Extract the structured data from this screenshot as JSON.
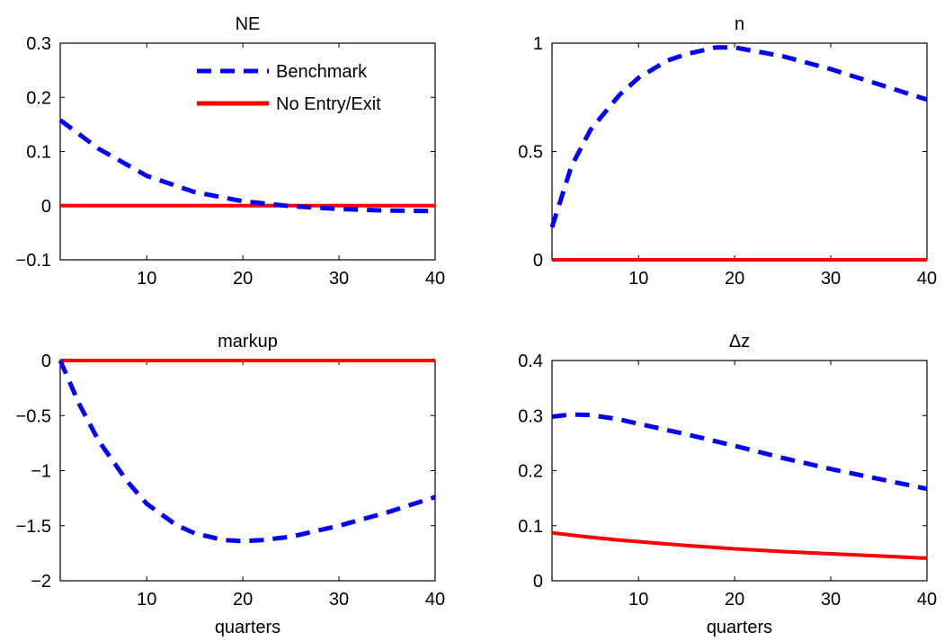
{
  "chart_data": [
    {
      "type": "line",
      "title": "NE",
      "xlabel": "",
      "ylabel": "",
      "xlim": [
        1,
        40
      ],
      "ylim": [
        -0.1,
        0.3
      ],
      "xticks": [
        10,
        20,
        30,
        40
      ],
      "yticks": [
        -0.1,
        0,
        0.1,
        0.2,
        0.3
      ],
      "x": [
        1,
        5,
        10,
        15,
        20,
        25,
        30,
        35,
        40
      ],
      "series": [
        {
          "name": "Benchmark",
          "color": "#0000ff",
          "style": "dashed",
          "values": [
            0.158,
            0.105,
            0.055,
            0.025,
            0.008,
            -0.001,
            -0.006,
            -0.009,
            -0.01
          ]
        },
        {
          "name": "No Entry/Exit",
          "color": "#ff0000",
          "style": "solid",
          "values": [
            0,
            0,
            0,
            0,
            0,
            0,
            0,
            0,
            0
          ]
        }
      ],
      "legend": {
        "position": "top-right"
      }
    },
    {
      "type": "line",
      "title": "n",
      "xlabel": "",
      "ylabel": "",
      "xlim": [
        1,
        40
      ],
      "ylim": [
        0,
        1
      ],
      "xticks": [
        10,
        20,
        30,
        40
      ],
      "yticks": [
        0,
        0.5,
        1
      ],
      "x": [
        1,
        3,
        5,
        8,
        10,
        13,
        15,
        18,
        20,
        25,
        30,
        35,
        40
      ],
      "series": [
        {
          "color": "#0000ff",
          "style": "dashed",
          "values": [
            0.15,
            0.43,
            0.6,
            0.76,
            0.84,
            0.92,
            0.95,
            0.98,
            0.98,
            0.94,
            0.88,
            0.81,
            0.74
          ]
        },
        {
          "color": "#ff0000",
          "style": "solid",
          "values": [
            0,
            0,
            0,
            0,
            0,
            0,
            0,
            0,
            0,
            0,
            0,
            0,
            0
          ]
        }
      ]
    },
    {
      "type": "line",
      "title": "markup",
      "xlabel": "quarters",
      "ylabel": "",
      "xlim": [
        1,
        40
      ],
      "ylim": [
        -2,
        0
      ],
      "xticks": [
        10,
        20,
        30,
        40
      ],
      "yticks": [
        -2,
        -1.5,
        -1,
        -0.5,
        0
      ],
      "x": [
        1,
        3,
        5,
        8,
        10,
        13,
        15,
        18,
        20,
        22,
        25,
        30,
        35,
        40
      ],
      "series": [
        {
          "color": "#0000ff",
          "style": "dashed",
          "values": [
            0,
            -0.4,
            -0.73,
            -1.1,
            -1.3,
            -1.49,
            -1.57,
            -1.63,
            -1.64,
            -1.63,
            -1.6,
            -1.5,
            -1.38,
            -1.24
          ]
        },
        {
          "color": "#ff0000",
          "style": "solid",
          "values": [
            0,
            0,
            0,
            0,
            0,
            0,
            0,
            0,
            0,
            0,
            0,
            0,
            0,
            0
          ]
        }
      ]
    },
    {
      "type": "line",
      "title": "Δz",
      "xlabel": "quarters",
      "ylabel": "",
      "xlim": [
        1,
        40
      ],
      "ylim": [
        0,
        0.4
      ],
      "xticks": [
        10,
        20,
        30,
        40
      ],
      "yticks": [
        0,
        0.1,
        0.2,
        0.3,
        0.4
      ],
      "x": [
        1,
        3,
        5,
        8,
        10,
        15,
        20,
        25,
        30,
        35,
        40
      ],
      "series": [
        {
          "color": "#0000ff",
          "style": "dashed",
          "values": [
            0.298,
            0.302,
            0.301,
            0.293,
            0.285,
            0.266,
            0.245,
            0.223,
            0.203,
            0.185,
            0.167
          ]
        },
        {
          "color": "#ff0000",
          "style": "solid",
          "values": [
            0.087,
            0.083,
            0.079,
            0.074,
            0.071,
            0.064,
            0.058,
            0.053,
            0.049,
            0.045,
            0.041
          ]
        }
      ]
    }
  ]
}
